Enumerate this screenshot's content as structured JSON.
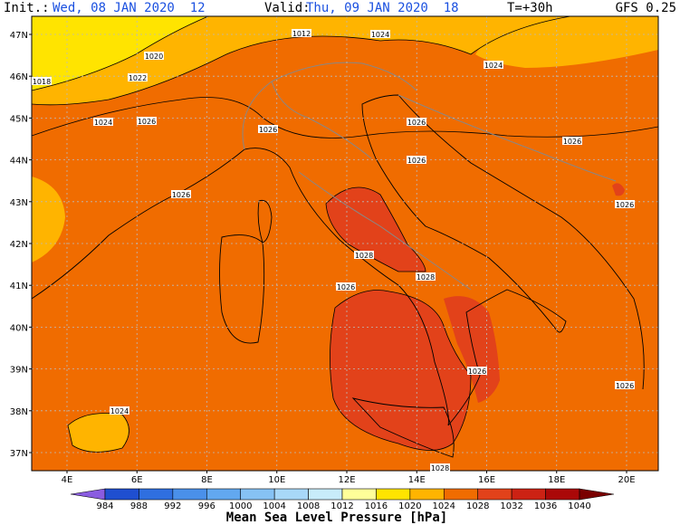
{
  "header": {
    "init_label": "Init.:",
    "init": "Wed, 08 JAN 2020  12",
    "valid_label": "Valid:",
    "valid": "Thu, 09 JAN 2020  18",
    "lead": "T=+30h",
    "model": "GFS 0.25"
  },
  "map": {
    "lat_labels": [
      "47N",
      "46N",
      "45N",
      "44N",
      "43N",
      "42N",
      "41N",
      "40N",
      "39N",
      "38N",
      "37N"
    ],
    "lon_labels": [
      "4E",
      "6E",
      "8E",
      "10E",
      "12E",
      "14E",
      "16E",
      "18E",
      "20E"
    ],
    "isobar_labels": [
      "1012",
      "1024",
      "1020",
      "1024",
      "1022",
      "1018",
      "1024",
      "1026",
      "1026",
      "1026",
      "1026",
      "1026",
      "1026",
      "1026",
      "1028",
      "1028",
      "1026",
      "1026",
      "1026",
      "1024",
      "1028"
    ]
  },
  "colorbar": {
    "title": "Mean Sea Level Pressure [hPa]",
    "levels": [
      984,
      988,
      992,
      996,
      1000,
      1004,
      1008,
      1012,
      1016,
      1020,
      1024,
      1028,
      1032,
      1036,
      1040
    ],
    "colors": [
      "#8a5ce0",
      "#1f4fd0",
      "#2f6fe0",
      "#4a90ea",
      "#62a8f0",
      "#86c2f4",
      "#a8d8f8",
      "#c8ecfa",
      "#ffff99",
      "#ffe400",
      "#ffb400",
      "#f06c00",
      "#e2421a",
      "#cc2214",
      "#aa0808",
      "#7a0000"
    ]
  }
}
